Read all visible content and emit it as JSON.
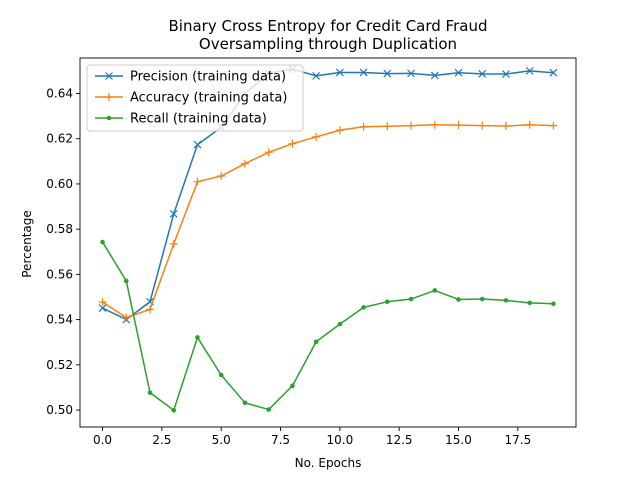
{
  "chart_data": {
    "type": "line",
    "title": "Binary Cross Entropy for Credit Card Fraud",
    "subtitle": "Oversampling through Duplication",
    "xlabel": "No. Epochs",
    "ylabel": "Percentage",
    "xlim": [
      -0.95,
      19.95
    ],
    "ylim": [
      0.4925,
      0.6557
    ],
    "x_ticks": [
      0,
      2.5,
      5,
      7.5,
      10,
      12.5,
      15,
      17.5
    ],
    "x_tick_labels": [
      "0.0",
      "2.5",
      "5.0",
      "7.5",
      "10.0",
      "12.5",
      "15.0",
      "17.5"
    ],
    "y_ticks": [
      0.5,
      0.52,
      0.54,
      0.56,
      0.58,
      0.6,
      0.62,
      0.64
    ],
    "y_tick_labels": [
      "0.50",
      "0.52",
      "0.54",
      "0.56",
      "0.58",
      "0.60",
      "0.62",
      "0.64"
    ],
    "grid": false,
    "legend_position": "top-left",
    "x": [
      0,
      1,
      2,
      3,
      4,
      5,
      6,
      7,
      8,
      9,
      10,
      11,
      12,
      13,
      14,
      15,
      16,
      17,
      18,
      19
    ],
    "series": [
      {
        "name": "Precision (training data)",
        "color": "#1f77b4",
        "marker": "x",
        "values": [
          0.5451,
          0.54,
          0.5479,
          0.5868,
          0.6174,
          0.625,
          0.64,
          0.649,
          0.6508,
          0.6478,
          0.6493,
          0.6493,
          0.6488,
          0.6489,
          0.648,
          0.6492,
          0.6487,
          0.6486,
          0.65,
          0.6492
        ]
      },
      {
        "name": "Accuracy (training data)",
        "color": "#ff7f0e",
        "marker": "+",
        "values": [
          0.5478,
          0.5409,
          0.5445,
          0.5735,
          0.601,
          0.6035,
          0.609,
          0.614,
          0.6178,
          0.6208,
          0.6238,
          0.6253,
          0.6255,
          0.6258,
          0.6262,
          0.626,
          0.6258,
          0.6256,
          0.6262,
          0.6258
        ]
      },
      {
        "name": "Recall (training data)",
        "color": "#2ca02c",
        "marker": ".",
        "values": [
          0.5743,
          0.5571,
          0.5077,
          0.4999,
          0.5321,
          0.5155,
          0.5032,
          0.5002,
          0.5107,
          0.5302,
          0.538,
          0.5454,
          0.5479,
          0.5491,
          0.5529,
          0.5489,
          0.5491,
          0.5485,
          0.5474,
          0.547
        ]
      }
    ]
  }
}
